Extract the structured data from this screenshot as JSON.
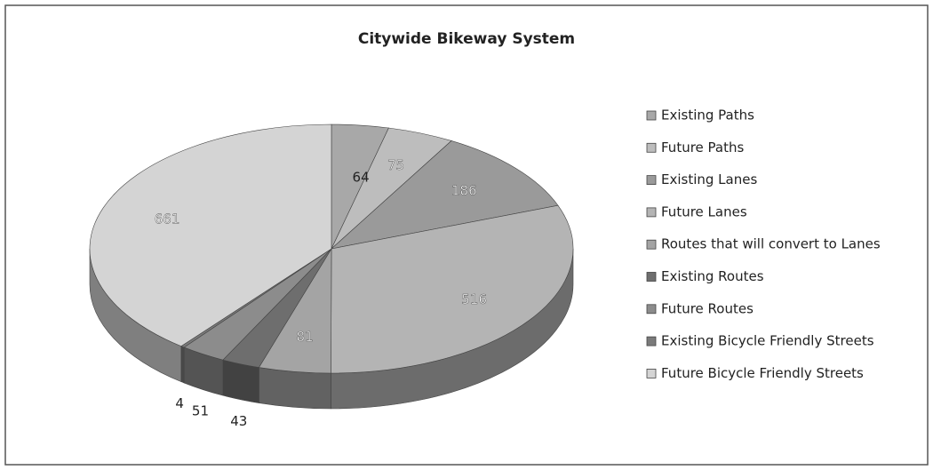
{
  "chart_data": {
    "type": "pie",
    "title": "Citywide Bikeway System",
    "categories": [
      "Existing Paths",
      "Future Paths",
      "Existing Lanes",
      "Future Lanes",
      "Routes that will convert to Lanes",
      "Existing Routes",
      "Future Routes",
      "Existing Bicycle Friendly Streets",
      "Future Bicycle Friendly Streets"
    ],
    "values": [
      64,
      75,
      186,
      516,
      81,
      43,
      51,
      4,
      661
    ],
    "colors": [
      "#a8a8a8",
      "#bdbdbd",
      "#9a9a9a",
      "#b4b4b4",
      "#a4a4a4",
      "#6e6e6e",
      "#8c8c8c",
      "#7a7a7a",
      "#d4d4d4"
    ],
    "legend": "right"
  }
}
